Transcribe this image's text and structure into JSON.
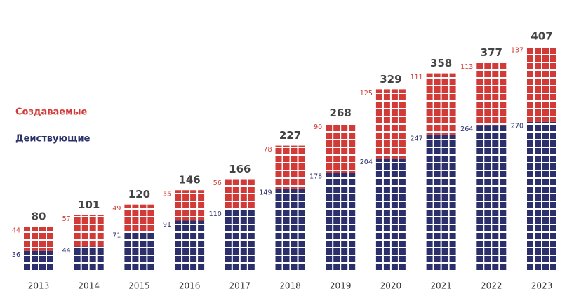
{
  "chart_data": {
    "type": "waffle-stacked-bar",
    "categories": [
      "2013",
      "2014",
      "2015",
      "2016",
      "2017",
      "2018",
      "2019",
      "2020",
      "2021",
      "2022",
      "2023"
    ],
    "series": [
      {
        "name": "Действующие",
        "color": "#2b2f6b",
        "values": [
          36,
          44,
          71,
          91,
          110,
          149,
          178,
          204,
          247,
          264,
          270
        ]
      },
      {
        "name": "Создаваемые",
        "color": "#d13a36",
        "values": [
          44,
          57,
          49,
          55,
          56,
          78,
          90,
          125,
          111,
          113,
          137
        ]
      }
    ],
    "totals": [
      80,
      101,
      120,
      146,
      166,
      227,
      268,
      329,
      358,
      377,
      407
    ]
  }
}
